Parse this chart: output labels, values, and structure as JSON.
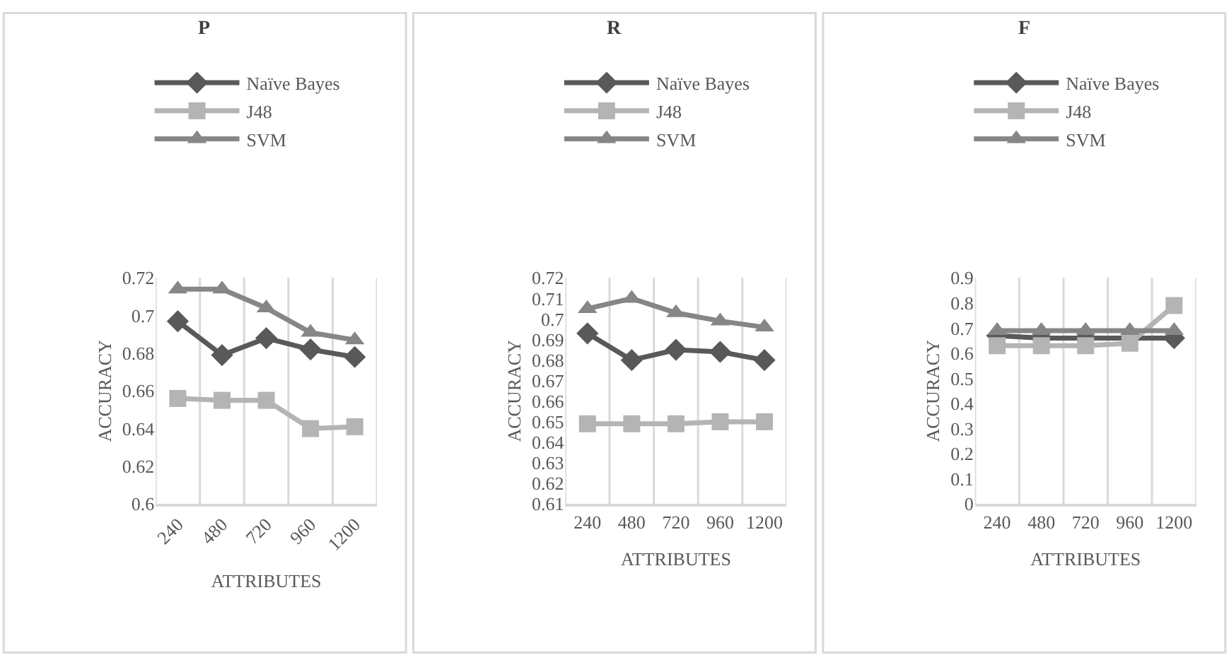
{
  "chart_data": [
    {
      "type": "line",
      "title": "P",
      "xlabel": "ATTRIBUTES",
      "ylabel": "ACCURACY",
      "categories": [
        "240",
        "480",
        "720",
        "960",
        "1200"
      ],
      "ylim": [
        0.6,
        0.72
      ],
      "yticks": [
        0.6,
        0.62,
        0.64,
        0.66,
        0.68,
        0.7,
        0.72
      ],
      "grid": "x",
      "legend": "top",
      "series": [
        {
          "name": "Naïve Bayes",
          "color": "#595959",
          "marker": "diamond",
          "values": [
            0.697,
            0.679,
            0.688,
            0.682,
            0.678
          ]
        },
        {
          "name": "J48",
          "color": "#b4b4b4",
          "marker": "square",
          "values": [
            0.656,
            0.655,
            0.655,
            0.64,
            0.641
          ]
        },
        {
          "name": "SVM",
          "color": "#868686",
          "marker": "triangle",
          "values": [
            0.714,
            0.714,
            0.704,
            0.691,
            0.687
          ]
        }
      ]
    },
    {
      "type": "line",
      "title": "R",
      "xlabel": "ATTRIBUTES",
      "ylabel": "ACCURACY",
      "categories": [
        "240",
        "480",
        "720",
        "960",
        "1200"
      ],
      "ylim": [
        0.61,
        0.72
      ],
      "yticks": [
        0.61,
        0.62,
        0.63,
        0.64,
        0.65,
        0.66,
        0.67,
        0.68,
        0.69,
        0.7,
        0.71,
        0.72
      ],
      "grid": "x",
      "legend": "top",
      "series": [
        {
          "name": "Naïve Bayes",
          "color": "#595959",
          "marker": "diamond",
          "values": [
            0.693,
            0.68,
            0.685,
            0.684,
            0.68
          ]
        },
        {
          "name": "J48",
          "color": "#b4b4b4",
          "marker": "square",
          "values": [
            0.649,
            0.649,
            0.649,
            0.65,
            0.65
          ]
        },
        {
          "name": "SVM",
          "color": "#868686",
          "marker": "triangle",
          "values": [
            0.705,
            0.71,
            0.703,
            0.699,
            0.696
          ]
        }
      ]
    },
    {
      "type": "line",
      "title": "F",
      "xlabel": "ATTRIBUTES",
      "ylabel": "ACCURACY",
      "categories": [
        "240",
        "480",
        "720",
        "960",
        "1200"
      ],
      "ylim": [
        0,
        0.9
      ],
      "yticks": [
        0,
        0.1,
        0.2,
        0.3,
        0.4,
        0.5,
        0.6,
        0.7,
        0.8,
        0.9
      ],
      "grid": "x",
      "legend": "top",
      "series": [
        {
          "name": "Naïve Bayes",
          "color": "#595959",
          "marker": "diamond",
          "values": [
            0.67,
            0.66,
            0.66,
            0.66,
            0.66
          ]
        },
        {
          "name": "J48",
          "color": "#b4b4b4",
          "marker": "square",
          "values": [
            0.63,
            0.63,
            0.63,
            0.64,
            0.79
          ]
        },
        {
          "name": "SVM",
          "color": "#868686",
          "marker": "triangle",
          "values": [
            0.69,
            0.69,
            0.69,
            0.69,
            0.69
          ]
        }
      ]
    }
  ]
}
